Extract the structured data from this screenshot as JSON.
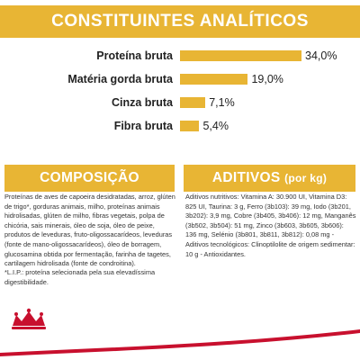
{
  "colors": {
    "accent": "#e8b534",
    "brand_red": "#c8102e"
  },
  "header": {
    "title": "CONSTITUINTES ANALÍTICOS"
  },
  "chart_data": {
    "type": "bar",
    "orientation": "horizontal",
    "title": "CONSTITUINTES ANALÍTICOS",
    "categories": [
      "Proteína bruta",
      "Matéria gorda bruta",
      "Cinza bruta",
      "Fibra bruta"
    ],
    "values": [
      34.0,
      19.0,
      7.1,
      5.4
    ],
    "value_labels": [
      "34,0%",
      "19,0%",
      "7,1%",
      "5,4%"
    ],
    "unit": "%",
    "xlim": [
      0,
      34
    ]
  },
  "composicao": {
    "title": "COMPOSIÇÃO",
    "text": "Proteínas de aves de capoeira desidratadas, arroz, glúten de trigo*, gorduras animais, milho, proteínas animais hidrolisadas, glúten de milho, fibras vegetais, polpa de chicória, sais minerais, óleo de soja, óleo de peixe, produtos de leveduras, fruto-oligossacarídeos, leveduras (fonte de mano-oligossacarídeos), óleo de borragem, glucosamina obtida por fermentação, farinha de tagetes, cartilagem hidrolisada (fonte de condroitina).",
    "note": "*L.I.P.: proteína selecionada pela sua elevadíssima digestibilidade."
  },
  "aditivos": {
    "title": "ADITIVOS",
    "title_suffix": "(por kg)",
    "text": "Aditivos nutritivos: Vitamina A: 30.900 UI, Vitamina D3: 825 UI, Taurina: 3 g, Ferro (3b103): 39 mg, Iodo (3b201, 3b202): 3,9 mg, Cobre (3b405, 3b406): 12 mg, Manganês (3b502, 3b504): 51 mg, Zinco (3b603, 3b605, 3b606): 136 mg, Selénio (3b801, 3b811, 3b812): 0,08 mg - Aditivos tecnológicos: Clinoptilolite de origem sedimentar: 10 g - Antioxidantes."
  },
  "logo": {
    "name": "royal-canin-crown-logo"
  }
}
